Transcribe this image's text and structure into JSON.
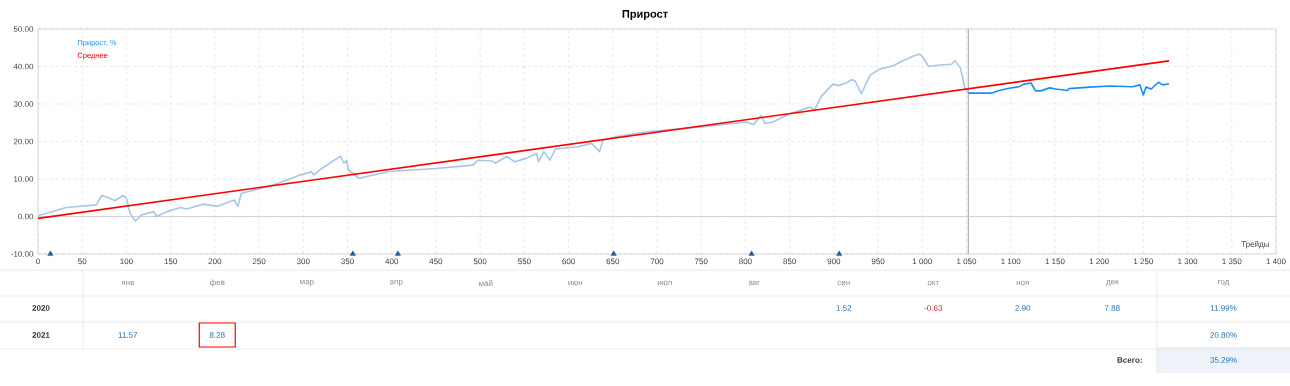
{
  "chart_data": [
    {
      "type": "line",
      "title": "Прирост",
      "xlabel": "Трейды",
      "grid": true,
      "legend": "top left",
      "xlim": [
        0,
        1400
      ],
      "ylim": [
        -10,
        50
      ],
      "xticks": [
        0,
        50,
        100,
        150,
        200,
        250,
        300,
        350,
        400,
        450,
        500,
        550,
        600,
        650,
        700,
        750,
        800,
        850,
        900,
        950,
        {
          "value": 1000,
          "label": "1 000"
        },
        {
          "value": 1050,
          "label": "1 050"
        },
        {
          "value": 1100,
          "label": "1 100"
        },
        {
          "value": 1150,
          "label": "1 150"
        },
        {
          "value": 1200,
          "label": "1 200"
        },
        {
          "value": 1250,
          "label": "1 250"
        },
        {
          "value": 1300,
          "label": "1 300"
        },
        {
          "value": 1350,
          "label": "1 350"
        },
        {
          "value": 1400,
          "label": "1 400"
        }
      ],
      "yticks": [
        {
          "value": -10,
          "label": "-10.00"
        },
        {
          "value": 0,
          "label": "0.00"
        },
        {
          "value": 10,
          "label": "10.00"
        },
        {
          "value": 20,
          "label": "20.00"
        },
        {
          "value": 30,
          "label": "30.00"
        },
        {
          "value": 40,
          "label": "40.00"
        },
        {
          "value": 50,
          "label": "50.00"
        }
      ],
      "ref_lines": [
        {
          "axis": "x",
          "value": 1052,
          "color": "#a0a0a0"
        },
        {
          "axis": "y",
          "value": 0,
          "color": "#c8c8c8"
        }
      ],
      "series": [
        {
          "color": "#a8c6e6",
          "x": [
            0,
            32,
            66,
            72,
            81,
            87,
            96,
            100,
            104,
            110,
            117,
            131,
            134,
            146,
            161,
            168,
            187,
            203,
            222,
            226,
            230,
            252,
            271,
            297,
            309,
            312,
            321,
            342,
            346,
            349,
            351,
            363,
            397,
            450,
            492,
            497,
            514,
            517,
            530,
            539,
            552,
            564,
            566,
            572,
            579,
            585,
            611,
            626,
            635,
            639,
            653,
            688,
            750,
            801,
            809,
            818,
            822,
            831,
            850,
            862,
            873,
            878,
            886,
            899,
            905,
            914,
            920,
            924,
            931,
            941,
            952,
            967,
            975,
            990,
            997,
            1001,
            1007,
            1020,
            1033,
            1037,
            1043,
            1048,
            1052
          ],
          "values": [
            0.2,
            2.4,
            3.1,
            5.6,
            4.9,
            4.2,
            5.6,
            4.9,
            0.9,
            -1.2,
            0.4,
            1.3,
            0,
            1.3,
            2.4,
            2.0,
            3.3,
            2.7,
            4.4,
            2.7,
            6.2,
            7.5,
            8.8,
            11.1,
            11.9,
            11.1,
            12.8,
            16.1,
            14.2,
            15.0,
            12.4,
            10.2,
            12.0,
            12.8,
            13.7,
            15.0,
            14.8,
            14.2,
            16.0,
            14.6,
            15.5,
            16.8,
            14.6,
            17.3,
            15.0,
            18.0,
            18.6,
            19.5,
            17.3,
            20.4,
            21.2,
            22.6,
            23.9,
            25.2,
            24.5,
            27.0,
            24.8,
            25.2,
            27.4,
            28.3,
            29.2,
            28.3,
            32.1,
            35.3,
            34.9,
            35.6,
            36.5,
            36.2,
            32.7,
            37.7,
            39.3,
            40.2,
            41.2,
            42.8,
            43.3,
            42.4,
            40.0,
            40.4,
            40.6,
            41.5,
            39.7,
            34.4,
            32.9
          ]
        },
        {
          "name": "Прирост, %",
          "color": "#1a8cff",
          "x": [
            1052,
            1079,
            1087,
            1098,
            1109,
            1115,
            1123,
            1128,
            1134,
            1144,
            1151,
            1164,
            1166,
            1189,
            1212,
            1238,
            1246,
            1250,
            1253,
            1259,
            1267,
            1272,
            1279
          ],
          "values": [
            32.9,
            32.9,
            33.6,
            34.2,
            34.6,
            35.3,
            35.6,
            33.5,
            33.5,
            34.3,
            34.0,
            33.6,
            34.1,
            34.5,
            34.8,
            34.6,
            35.1,
            32.4,
            34.5,
            34.0,
            35.8,
            35.1,
            35.4
          ]
        },
        {
          "name": "Среднее",
          "color": "#ff0000",
          "x": [
            0,
            1279
          ],
          "values": [
            -0.5,
            41.5
          ]
        },
        {
          "type": "scatter",
          "marker": "triangle",
          "color": "#1f5a96",
          "x": [
            14,
            356,
            407,
            651,
            807,
            906
          ],
          "values": [
            -10,
            -10,
            -10,
            -10,
            -10,
            -10
          ]
        }
      ]
    },
    {
      "type": "other",
      "categories": [
        "янв",
        "фев",
        "мар",
        "апр",
        "май",
        "июн",
        "июл",
        "авг",
        "сен",
        "окт",
        "ноя",
        "дек",
        "год"
      ],
      "y_categories": [
        "2020",
        "2021"
      ],
      "cell_labels": [
        [
          null,
          null,
          null,
          null,
          null,
          null,
          null,
          null,
          "1.52",
          "-0.63",
          "2.90",
          "7.88",
          "11.99%"
        ],
        [
          "11.57",
          "8.28",
          null,
          null,
          null,
          null,
          null,
          null,
          null,
          null,
          null,
          null,
          "20.80%"
        ]
      ],
      "annotations": [
        "Всего:",
        "35.29%"
      ]
    }
  ]
}
